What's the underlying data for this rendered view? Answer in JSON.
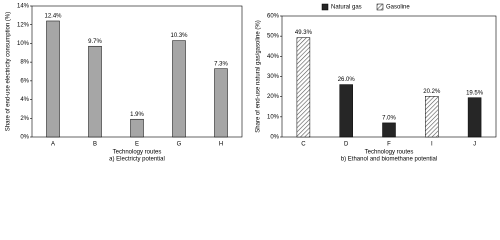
{
  "chart_data": [
    {
      "type": "bar",
      "y_label": "Share of end-use electricity consumption (%)",
      "x_label": "Technology routes",
      "caption": "a) Electricty potential",
      "categories": [
        "A",
        "B",
        "E",
        "G",
        "H"
      ],
      "values": [
        12.4,
        9.7,
        1.9,
        10.3,
        7.3
      ],
      "value_labels": [
        "12.4%",
        "9.7%",
        "1.9%",
        "10.3%",
        "7.3%"
      ],
      "color": "#a6a6a6",
      "ylim": [
        0,
        14
      ],
      "yticks": [
        {
          "value": 0,
          "label": "0%"
        },
        {
          "value": 2,
          "label": "2%"
        },
        {
          "value": 4,
          "label": "4%"
        },
        {
          "value": 6,
          "label": "6%"
        },
        {
          "value": 8,
          "label": "8%"
        },
        {
          "value": 10,
          "label": "10%"
        },
        {
          "value": 12,
          "label": "12%"
        },
        {
          "value": 14,
          "label": "14%"
        }
      ]
    },
    {
      "type": "bar",
      "y_label": "Share of end-use natural gas/gasoline (%)",
      "x_label": "Technology routes",
      "caption": "b) Ethanol and biomethane potential",
      "categories": [
        "C",
        "D",
        "F",
        "I",
        "J"
      ],
      "series": [
        {
          "name": "Natural gas",
          "color": "#262626",
          "values": [
            null,
            26.0,
            7.0,
            null,
            19.5
          ],
          "value_labels": [
            null,
            "26.0%",
            "7.0%",
            null,
            "19.5%"
          ]
        },
        {
          "name": "Gasoline",
          "color": "#ffffff",
          "hatch": true,
          "values": [
            49.3,
            null,
            null,
            20.2,
            null
          ],
          "value_labels": [
            "49.3%",
            null,
            null,
            "20.2%",
            null
          ]
        }
      ],
      "ylim": [
        0,
        60
      ],
      "yticks": [
        {
          "value": 0,
          "label": "0%"
        },
        {
          "value": 10,
          "label": "10%"
        },
        {
          "value": 20,
          "label": "20%"
        },
        {
          "value": 30,
          "label": "30%"
        },
        {
          "value": 40,
          "label": "40%"
        },
        {
          "value": 50,
          "label": "50%"
        },
        {
          "value": 60,
          "label": "60%"
        }
      ]
    }
  ]
}
